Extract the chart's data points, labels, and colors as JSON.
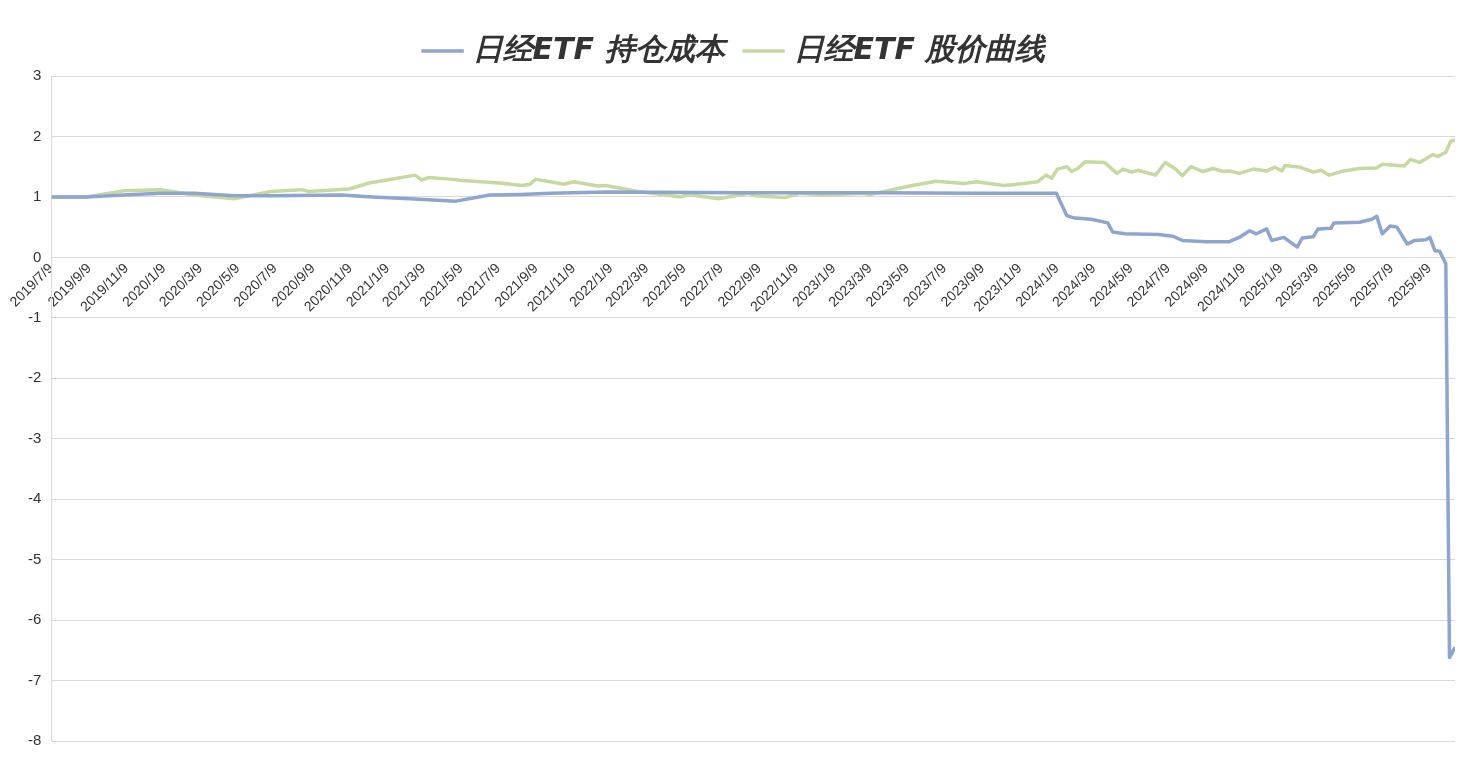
{
  "chart_data": {
    "type": "line",
    "legend": "top",
    "grid": "y",
    "marker": "none",
    "line_style": "solid",
    "xlim": [
      "2019-07-09",
      "2025-10-21"
    ],
    "ylim": [
      -8,
      3
    ],
    "yticks": [
      -8,
      -7,
      -6,
      -5,
      -4,
      -3,
      -2,
      -1,
      0,
      1,
      2,
      3
    ],
    "xticks": [
      {
        "value": "2019-07-09",
        "label": "2019/7/9"
      },
      {
        "value": "2019-09-09",
        "label": "2019/9/9"
      },
      {
        "value": "2019-11-09",
        "label": "2019/11/9"
      },
      {
        "value": "2020-01-09",
        "label": "2020/1/9"
      },
      {
        "value": "2020-03-09",
        "label": "2020/3/9"
      },
      {
        "value": "2020-05-09",
        "label": "2020/5/9"
      },
      {
        "value": "2020-07-09",
        "label": "2020/7/9"
      },
      {
        "value": "2020-09-09",
        "label": "2020/9/9"
      },
      {
        "value": "2020-11-09",
        "label": "2020/11/9"
      },
      {
        "value": "2021-01-09",
        "label": "2021/1/9"
      },
      {
        "value": "2021-03-09",
        "label": "2021/3/9"
      },
      {
        "value": "2021-05-09",
        "label": "2021/5/9"
      },
      {
        "value": "2021-07-09",
        "label": "2021/7/9"
      },
      {
        "value": "2021-09-09",
        "label": "2021/9/9"
      },
      {
        "value": "2021-11-09",
        "label": "2021/11/9"
      },
      {
        "value": "2022-01-09",
        "label": "2022/1/9"
      },
      {
        "value": "2022-03-09",
        "label": "2022/3/9"
      },
      {
        "value": "2022-05-09",
        "label": "2022/5/9"
      },
      {
        "value": "2022-07-09",
        "label": "2022/7/9"
      },
      {
        "value": "2022-09-09",
        "label": "2022/9/9"
      },
      {
        "value": "2022-11-09",
        "label": "2022/11/9"
      },
      {
        "value": "2023-01-09",
        "label": "2023/1/9"
      },
      {
        "value": "2023-03-09",
        "label": "2023/3/9"
      },
      {
        "value": "2023-05-09",
        "label": "2023/5/9"
      },
      {
        "value": "2023-07-09",
        "label": "2023/7/9"
      },
      {
        "value": "2023-09-09",
        "label": "2023/9/9"
      },
      {
        "value": "2023-11-09",
        "label": "2023/11/9"
      },
      {
        "value": "2024-01-09",
        "label": "2024/1/9"
      },
      {
        "value": "2024-03-09",
        "label": "2024/3/9"
      },
      {
        "value": "2024-05-09",
        "label": "2024/5/9"
      },
      {
        "value": "2024-07-09",
        "label": "2024/7/9"
      },
      {
        "value": "2024-09-09",
        "label": "2024/9/9"
      },
      {
        "value": "2024-11-09",
        "label": "2024/11/9"
      },
      {
        "value": "2025-01-09",
        "label": "2025/1/9"
      },
      {
        "value": "2025-03-09",
        "label": "2025/3/9"
      },
      {
        "value": "2025-05-09",
        "label": "2025/5/9"
      },
      {
        "value": "2025-07-09",
        "label": "2025/7/9"
      },
      {
        "value": "2025-09-09",
        "label": "2025/9/9"
      }
    ],
    "series": [
      {
        "name": "日经ETF 持仓成本",
        "color": "#8ea5cf",
        "x": [
          "2019-07-09",
          "2019-09-04",
          "2019-11-04",
          "2020-01-03",
          "2020-02-28",
          "2020-05-03",
          "2020-07-02",
          "2020-10-26",
          "2020-12-15",
          "2021-02-15",
          "2021-05-01",
          "2021-06-25",
          "2021-08-14",
          "2021-10-02",
          "2022-01-04",
          "2022-08-11",
          "2023-03-17",
          "2023-08-30",
          "2024-01-08",
          "2024-01-25",
          "2024-02-07",
          "2024-03-05",
          "2024-04-01",
          "2024-04-09",
          "2024-04-29",
          "2024-06-23",
          "2024-07-16",
          "2024-08-01",
          "2024-09-09",
          "2024-10-17",
          "2024-11-02",
          "2024-11-19",
          "2024-11-30",
          "2024-12-17",
          "2024-12-25",
          "2025-01-14",
          "2025-02-05",
          "2025-02-13",
          "2025-03-03",
          "2025-03-11",
          "2025-04-01",
          "2025-04-06",
          "2025-05-18",
          "2025-06-07",
          "2025-06-15",
          "2025-06-24",
          "2025-07-07",
          "2025-07-18",
          "2025-08-04",
          "2025-08-16",
          "2025-09-03",
          "2025-09-10",
          "2025-09-18",
          "2025-09-26",
          "2025-10-06",
          "2025-10-12",
          "2025-10-21"
        ],
        "values": [
          1.0,
          1.0,
          1.03,
          1.06,
          1.06,
          1.02,
          1.02,
          1.03,
          1.0,
          0.97,
          0.93,
          1.03,
          1.04,
          1.06,
          1.08,
          1.07,
          1.07,
          1.06,
          1.06,
          0.69,
          0.65,
          0.63,
          0.57,
          0.42,
          0.39,
          0.38,
          0.35,
          0.28,
          0.26,
          0.26,
          0.33,
          0.44,
          0.39,
          0.47,
          0.28,
          0.33,
          0.17,
          0.32,
          0.34,
          0.47,
          0.48,
          0.57,
          0.58,
          0.63,
          0.68,
          0.39,
          0.52,
          0.5,
          0.22,
          0.28,
          0.29,
          0.33,
          0.11,
          0.1,
          -0.11,
          -6.62,
          -6.45
        ]
      },
      {
        "name": "日经ETF 股价曲线",
        "color": "#c5d9a0",
        "x": [
          "2019-07-09",
          "2019-09-04",
          "2019-11-04",
          "2020-01-03",
          "2020-02-28",
          "2020-05-03",
          "2020-07-02",
          "2020-08-21",
          "2020-09-02",
          "2020-11-07",
          "2020-12-10",
          "2021-02-23",
          "2021-03-06",
          "2021-03-17",
          "2021-04-25",
          "2021-05-11",
          "2021-07-11",
          "2021-08-17",
          "2021-08-30",
          "2021-09-08",
          "2021-10-02",
          "2021-10-24",
          "2021-11-09",
          "2021-12-19",
          "2022-01-01",
          "2022-02-23",
          "2022-05-04",
          "2022-05-15",
          "2022-07-04",
          "2022-08-23",
          "2022-09-02",
          "2022-10-21",
          "2022-11-14",
          "2022-12-26",
          "2023-02-26",
          "2023-03-09",
          "2023-05-13",
          "2023-06-25",
          "2023-08-09",
          "2023-08-30",
          "2023-10-14",
          "2023-11-16",
          "2023-12-08",
          "2023-12-22",
          "2023-12-31",
          "2024-01-10",
          "2024-01-25",
          "2024-02-02",
          "2024-02-12",
          "2024-02-24",
          "2024-03-27",
          "2024-04-16",
          "2024-04-26",
          "2024-05-10",
          "2024-05-20",
          "2024-06-18",
          "2024-07-04",
          "2024-07-20",
          "2024-08-01",
          "2024-08-15",
          "2024-09-04",
          "2024-09-20",
          "2024-10-07",
          "2024-10-17",
          "2024-11-02",
          "2024-11-25",
          "2024-12-17",
          "2024-12-30",
          "2025-01-11",
          "2025-01-16",
          "2025-02-10",
          "2025-03-03",
          "2025-03-16",
          "2025-03-29",
          "2025-04-22",
          "2025-05-18",
          "2025-06-15",
          "2025-06-24",
          "2025-07-30",
          "2025-08-09",
          "2025-08-24",
          "2025-09-15",
          "2025-09-23",
          "2025-10-06",
          "2025-10-14",
          "2025-10-21"
        ],
        "values": [
          1.0,
          1.0,
          1.1,
          1.12,
          1.03,
          0.97,
          1.09,
          1.12,
          1.09,
          1.13,
          1.23,
          1.36,
          1.28,
          1.32,
          1.29,
          1.27,
          1.23,
          1.19,
          1.21,
          1.29,
          1.25,
          1.21,
          1.25,
          1.18,
          1.19,
          1.09,
          1.0,
          1.04,
          0.97,
          1.06,
          1.02,
          0.99,
          1.06,
          1.03,
          1.06,
          1.04,
          1.18,
          1.26,
          1.22,
          1.25,
          1.19,
          1.22,
          1.25,
          1.36,
          1.31,
          1.46,
          1.5,
          1.42,
          1.47,
          1.58,
          1.57,
          1.39,
          1.46,
          1.41,
          1.44,
          1.36,
          1.57,
          1.47,
          1.35,
          1.5,
          1.42,
          1.47,
          1.42,
          1.43,
          1.39,
          1.46,
          1.43,
          1.49,
          1.43,
          1.52,
          1.49,
          1.41,
          1.44,
          1.36,
          1.43,
          1.47,
          1.48,
          1.54,
          1.51,
          1.62,
          1.57,
          1.7,
          1.67,
          1.74,
          1.92,
          1.94
        ]
      }
    ]
  }
}
